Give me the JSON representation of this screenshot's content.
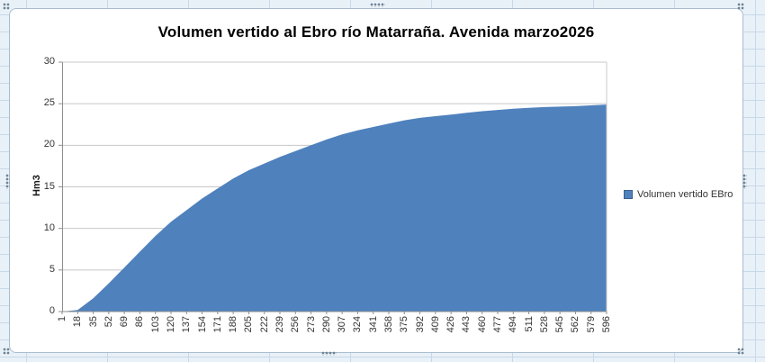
{
  "chart": {
    "colors": {
      "area": "#4F81BD",
      "plot_gridline": "#c8c8c8",
      "axis_line": "#8f8f8f",
      "tick_label": "#333333",
      "chart_border": "#a9bdd0",
      "worksheet_grid": "#c7d8e8"
    }
  },
  "chart_data": {
    "type": "area",
    "title": "Volumen vertido al Ebro río Matarraña. Avenida marzo2026",
    "xlabel": "",
    "ylabel": "Hm3",
    "ylim": [
      0,
      30
    ],
    "yticks": [
      0,
      5,
      10,
      15,
      20,
      25,
      30
    ],
    "grid": true,
    "legend_position": "right",
    "categories": [
      1,
      18,
      35,
      52,
      69,
      86,
      103,
      120,
      137,
      154,
      171,
      188,
      205,
      222,
      239,
      256,
      273,
      290,
      307,
      324,
      341,
      358,
      375,
      392,
      409,
      426,
      443,
      460,
      477,
      494,
      511,
      528,
      545,
      562,
      579,
      596
    ],
    "series": [
      {
        "name": "Volumen vertido EBro",
        "color": "#4F81BD",
        "values": [
          0,
          0.2,
          1.6,
          3.4,
          5.3,
          7.2,
          9.1,
          10.8,
          12.2,
          13.6,
          14.8,
          16.0,
          17.0,
          17.8,
          18.6,
          19.3,
          20.0,
          20.7,
          21.3,
          21.8,
          22.2,
          22.6,
          23.0,
          23.3,
          23.5,
          23.7,
          23.9,
          24.1,
          24.25,
          24.4,
          24.5,
          24.6,
          24.65,
          24.7,
          24.8,
          24.9
        ]
      }
    ]
  }
}
